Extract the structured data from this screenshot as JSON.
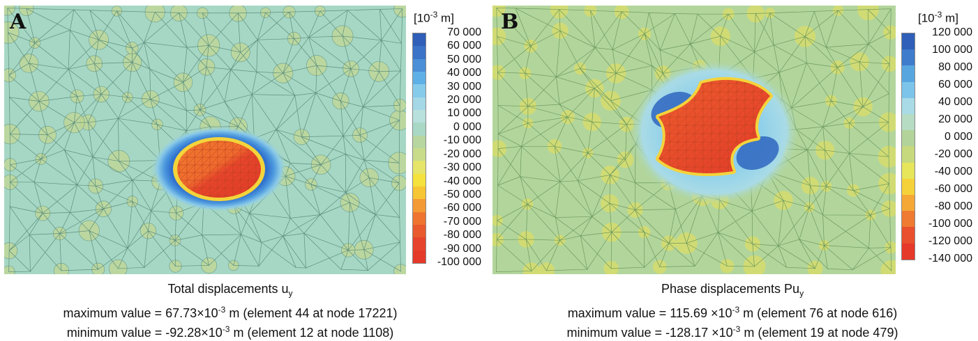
{
  "panels": {
    "a": {
      "letter": "A",
      "unit_base": "[10",
      "unit_exp": "-3",
      "unit_tail": " m]",
      "legend": [
        "70 000",
        "60 000",
        "50 000",
        "40 000",
        "30 000",
        "20 000",
        "10 000",
        "0 000",
        "-10 000",
        "-20 000",
        "-30 000",
        "-40 000",
        "-50 000",
        "-60 000",
        "-70 000",
        "-80 000",
        "-90 000",
        "-100 000"
      ],
      "legend_colors": [
        "#2f5fb8",
        "#3a73c8",
        "#4a8fd8",
        "#5fb0e6",
        "#86cbea",
        "#a4d8e6",
        "#b8e0dc",
        "#a9d8c6",
        "#b7d6a0",
        "#c9dc8a",
        "#e6e56a",
        "#f5e23c",
        "#f7c634",
        "#f49a34",
        "#ee7430",
        "#e95a2e",
        "#e6442c",
        "#e53a2a"
      ],
      "caption_title": "Total displacements u",
      "caption_title_sub": "y",
      "caption_max_pre": "maximum value = 67.73×10",
      "caption_max_exp": "-3",
      "caption_max_post": " m (element 44 at node 17221)",
      "caption_min_pre": "minimum value = -92.28×10",
      "caption_min_exp": "-3",
      "caption_min_post": " m (element 12 at node 1108)",
      "colors": {
        "background": "#a6d7c5",
        "hot_core": "#e8542e",
        "ring": "#3b82d0",
        "ring_inner": "#f2d23a"
      }
    },
    "b": {
      "letter": "B",
      "unit_base": "[10",
      "unit_exp": "-3",
      "unit_tail": " m]",
      "legend": [
        "120 000",
        "100 000",
        "80 000",
        "60 000",
        "40 000",
        "20 000",
        "0 000",
        "-20 000",
        "-40 000",
        "-60 000",
        "-80 000",
        "-100 000",
        "-120 000",
        "-140 000"
      ],
      "legend_colors": [
        "#2f5fb8",
        "#3f7ccc",
        "#58a6e0",
        "#7cc4ea",
        "#a8dbe6",
        "#b6dcc4",
        "#b2d49a",
        "#c6d97c",
        "#e7e55a",
        "#f6d23a",
        "#f5a835",
        "#ef7a31",
        "#e9502d",
        "#e5392a"
      ],
      "caption_title": "Phase displacements Pu",
      "caption_title_sub": "y",
      "caption_max_pre": "maximum value = 115.69 ×10",
      "caption_max_exp": "-3",
      "caption_max_post": " m (element 76 at node 616)",
      "caption_min_pre": "minimum value = -128.17 ×10",
      "caption_min_exp": "-3",
      "caption_min_post": " m (element 19 at node 479)",
      "colors": {
        "background": "#b2d59c",
        "hot_core": "#e5472c",
        "ring": "#a8dbe6",
        "lobes": "#2f66c0"
      }
    }
  }
}
